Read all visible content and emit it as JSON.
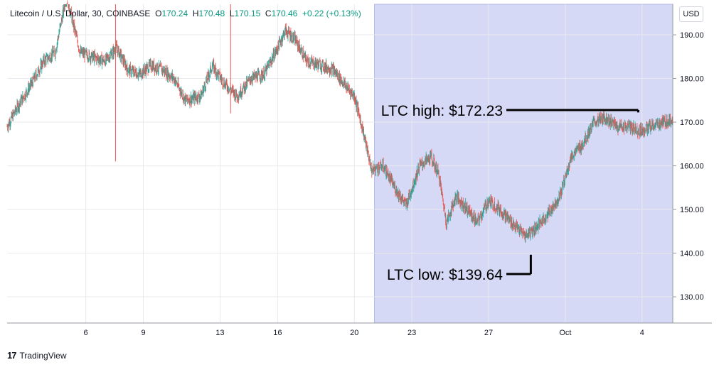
{
  "header": {
    "symbol": "Litecoin / U.S. Dollar, 30, COINBASE",
    "open_label": "O",
    "open": "170.24",
    "high_label": "H",
    "high": "170.48",
    "low_label": "L",
    "low": "170.15",
    "close_label": "C",
    "close": "170.46",
    "change": "+0.22 (+0.13%)"
  },
  "currency_badge": "USD",
  "brand": "TradingView",
  "colors": {
    "up": "#26a69a",
    "down": "#ef5350",
    "highlight": "#d6d9f5",
    "grid": "#e8e9ee",
    "text": "#131722",
    "annotation": "#000000"
  },
  "chart_data": {
    "type": "candlestick",
    "interval": "30",
    "ylim": [
      124,
      197
    ],
    "y_ticks": [
      "130.00",
      "140.00",
      "150.00",
      "160.00",
      "170.00",
      "180.00",
      "190.00"
    ],
    "y_tick_values": [
      130,
      140,
      150,
      160,
      170,
      180,
      190
    ],
    "x_ticks": [
      "6",
      "9",
      "13",
      "16",
      "20",
      "23",
      "27",
      "Oct",
      "4"
    ],
    "x_tick_days": [
      6,
      9,
      13,
      16,
      20,
      23,
      27,
      31,
      35
    ],
    "x_range_days": [
      1.9,
      36.6
    ],
    "grid": true,
    "highlight_range_days": [
      21.05,
      36.6
    ],
    "price_path": [
      [
        1.9,
        169
      ],
      [
        2.5,
        174
      ],
      [
        3.2,
        179
      ],
      [
        3.8,
        184
      ],
      [
        4.4,
        186
      ],
      [
        5.0,
        199
      ],
      [
        5.7,
        186
      ],
      [
        6.3,
        185
      ],
      [
        7.0,
        184
      ],
      [
        7.6,
        187
      ],
      [
        8.2,
        182
      ],
      [
        8.8,
        181
      ],
      [
        9.4,
        183
      ],
      [
        10.0,
        182
      ],
      [
        10.6,
        180
      ],
      [
        11.2,
        175
      ],
      [
        12.0,
        176
      ],
      [
        12.6,
        183
      ],
      [
        13.2,
        179
      ],
      [
        13.9,
        176
      ],
      [
        14.6,
        180
      ],
      [
        15.3,
        181
      ],
      [
        16.0,
        187
      ],
      [
        16.4,
        191
      ],
      [
        16.9,
        189
      ],
      [
        17.5,
        184
      ],
      [
        18.3,
        183
      ],
      [
        18.9,
        182
      ],
      [
        19.6,
        178
      ],
      [
        20.0,
        176
      ],
      [
        20.4,
        169
      ],
      [
        20.9,
        159
      ],
      [
        21.5,
        160
      ],
      [
        22.1,
        155
      ],
      [
        22.7,
        151
      ],
      [
        23.4,
        160
      ],
      [
        24.0,
        162
      ],
      [
        24.4,
        158
      ],
      [
        24.8,
        147
      ],
      [
        25.3,
        153
      ],
      [
        25.9,
        150
      ],
      [
        26.4,
        147
      ],
      [
        27.0,
        152
      ],
      [
        27.6,
        150
      ],
      [
        28.2,
        147
      ],
      [
        28.9,
        144
      ],
      [
        29.5,
        146
      ],
      [
        30.1,
        149
      ],
      [
        30.7,
        153
      ],
      [
        31.3,
        162
      ],
      [
        31.9,
        165
      ],
      [
        32.5,
        170
      ],
      [
        33.1,
        171
      ],
      [
        33.7,
        169
      ],
      [
        34.3,
        169
      ],
      [
        34.9,
        168
      ],
      [
        35.5,
        169
      ],
      [
        36.1,
        170
      ],
      [
        36.6,
        170.46
      ]
    ],
    "spikes": [
      {
        "x": 7.55,
        "high": 199,
        "low": 161
      },
      {
        "x": 13.55,
        "high": 199,
        "low": 172
      }
    ],
    "annotations": [
      {
        "label": "LTC high: $172.23",
        "value": 172.23,
        "anchor_day": 34.8
      },
      {
        "label": "LTC low: $139.64",
        "value": 139.64,
        "anchor_day": 29.2
      }
    ]
  }
}
